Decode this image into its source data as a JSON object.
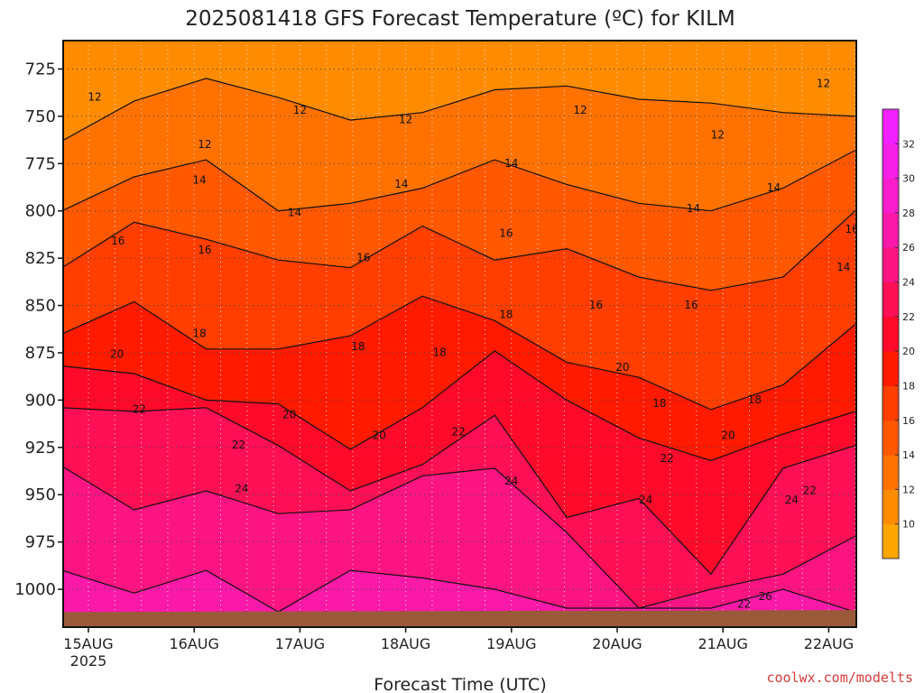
{
  "chart_data": {
    "type": "heatmap",
    "title": "2025081418 GFS Forecast Temperature (ºC) for KILM",
    "xlabel": "Forecast Time (UTC)",
    "credit": "coolwx.com/modelts",
    "y_axis": {
      "scale": "pressure (inverted)",
      "ylim": [
        1020,
        710
      ],
      "ticks": [
        "725",
        "750",
        "775",
        "800",
        "825",
        "850",
        "875",
        "900",
        "925",
        "950",
        "975",
        "1000"
      ]
    },
    "x_axis": {
      "ticks": [
        {
          "label": "15AUG",
          "sub": "2025"
        },
        {
          "label": "16AUG",
          "sub": ""
        },
        {
          "label": "17AUG",
          "sub": ""
        },
        {
          "label": "18AUG",
          "sub": ""
        },
        {
          "label": "19AUG",
          "sub": ""
        },
        {
          "label": "20AUG",
          "sub": ""
        },
        {
          "label": "21AUG",
          "sub": ""
        },
        {
          "label": "22AUG",
          "sub": ""
        }
      ]
    },
    "grid": true,
    "colorbar": {
      "levels": [
        8,
        10,
        12,
        14,
        16,
        18,
        20,
        22,
        24,
        26,
        28,
        30,
        32,
        34
      ],
      "tick_labels": [
        "10",
        "12",
        "14",
        "16",
        "18",
        "20",
        "22",
        "24",
        "26",
        "28",
        "30",
        "32"
      ],
      "colors": [
        "#ffa500",
        "#ff8c00",
        "#ff7200",
        "#ff5800",
        "#ff3e00",
        "#ff1a00",
        "#ff0a2a",
        "#ff0f55",
        "#fc1482",
        "#fa19a8",
        "#f81ccc",
        "#f51fe6",
        "#f020ff"
      ]
    },
    "surface_color": "#9a5a3a",
    "isotherms": [
      {
        "value": 12,
        "p": [
          763,
          742,
          730,
          740,
          752,
          748,
          736,
          734,
          741,
          743,
          748,
          750
        ]
      },
      {
        "value": 14,
        "p": [
          800,
          782,
          773,
          800,
          796,
          788,
          773,
          786,
          796,
          800,
          788,
          768
        ]
      },
      {
        "value": 16,
        "p": [
          830,
          806,
          815,
          826,
          830,
          808,
          826,
          820,
          835,
          842,
          835,
          800
        ]
      },
      {
        "value": 18,
        "p": [
          865,
          848,
          873,
          873,
          866,
          845,
          858,
          880,
          888,
          905,
          892,
          860
        ]
      },
      {
        "value": 20,
        "p": [
          882,
          886,
          900,
          902,
          926,
          904,
          874,
          900,
          920,
          932,
          918,
          906
        ]
      },
      {
        "value": 22,
        "p": [
          904,
          906,
          904,
          924,
          948,
          934,
          908,
          962,
          952,
          992,
          936,
          924
        ]
      },
      {
        "value": 24,
        "p": [
          935,
          958,
          948,
          960,
          958,
          940,
          936,
          970,
          1010,
          1000,
          992,
          972
        ]
      },
      {
        "value": 26,
        "p": [
          990,
          1002,
          990,
          1012,
          990,
          994,
          1000,
          1010,
          1010,
          1010,
          1000,
          1012
        ]
      }
    ],
    "labels": [
      {
        "v": "12",
        "t": 0.06,
        "p": 740
      },
      {
        "v": "12",
        "t": 1.1,
        "p": 765
      },
      {
        "v": "12",
        "t": 2.0,
        "p": 747
      },
      {
        "v": "12",
        "t": 3.0,
        "p": 752
      },
      {
        "v": "12",
        "t": 4.65,
        "p": 747
      },
      {
        "v": "12",
        "t": 5.95,
        "p": 760
      },
      {
        "v": "12",
        "t": 6.95,
        "p": 733
      },
      {
        "v": "14",
        "t": 1.05,
        "p": 784
      },
      {
        "v": "14",
        "t": 1.95,
        "p": 801
      },
      {
        "v": "14",
        "t": 2.96,
        "p": 786
      },
      {
        "v": "14",
        "t": 4.0,
        "p": 775
      },
      {
        "v": "14",
        "t": 5.72,
        "p": 799
      },
      {
        "v": "14",
        "t": 6.48,
        "p": 788
      },
      {
        "v": "14",
        "t": 7.14,
        "p": 830
      },
      {
        "v": "16",
        "t": 0.28,
        "p": 816
      },
      {
        "v": "16",
        "t": 1.1,
        "p": 821
      },
      {
        "v": "16",
        "t": 2.6,
        "p": 825
      },
      {
        "v": "16",
        "t": 3.95,
        "p": 812
      },
      {
        "v": "16",
        "t": 4.8,
        "p": 850
      },
      {
        "v": "16",
        "t": 5.7,
        "p": 850
      },
      {
        "v": "16",
        "t": 7.22,
        "p": 810
      },
      {
        "v": "18",
        "t": 1.05,
        "p": 865
      },
      {
        "v": "18",
        "t": 2.55,
        "p": 872
      },
      {
        "v": "18",
        "t": 3.32,
        "p": 875
      },
      {
        "v": "18",
        "t": 3.95,
        "p": 855
      },
      {
        "v": "18",
        "t": 5.4,
        "p": 902
      },
      {
        "v": "18",
        "t": 6.3,
        "p": 900
      },
      {
        "v": "18",
        "t": 7.35,
        "p": 886
      },
      {
        "v": "20",
        "t": 0.27,
        "p": 876
      },
      {
        "v": "20",
        "t": 1.9,
        "p": 908
      },
      {
        "v": "20",
        "t": 2.75,
        "p": 919
      },
      {
        "v": "20",
        "t": 5.05,
        "p": 883
      },
      {
        "v": "20",
        "t": 6.05,
        "p": 919
      },
      {
        "v": "20",
        "t": 7.6,
        "p": 920
      },
      {
        "v": "22",
        "t": 0.48,
        "p": 905
      },
      {
        "v": "22",
        "t": 1.42,
        "p": 924
      },
      {
        "v": "22",
        "t": 3.5,
        "p": 917
      },
      {
        "v": "22",
        "t": 5.47,
        "p": 931
      },
      {
        "v": "22",
        "t": 6.82,
        "p": 948
      },
      {
        "v": "22",
        "t": 7.65,
        "p": 945
      },
      {
        "v": "22",
        "t": 6.2,
        "p": 1008
      },
      {
        "v": "24",
        "t": 1.45,
        "p": 947
      },
      {
        "v": "24",
        "t": 4.0,
        "p": 943
      },
      {
        "v": "24",
        "t": 5.27,
        "p": 953
      },
      {
        "v": "24",
        "t": 6.65,
        "p": 953
      },
      {
        "v": "24",
        "t": 7.66,
        "p": 973
      },
      {
        "v": "26",
        "t": 6.4,
        "p": 1004
      },
      {
        "v": "26",
        "t": 7.55,
        "p": 1012
      }
    ]
  }
}
